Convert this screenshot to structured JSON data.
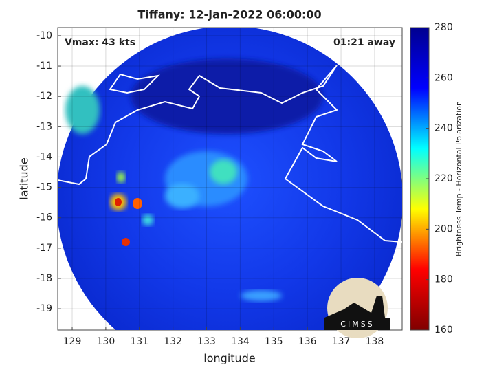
{
  "chart_data": {
    "type": "image",
    "title": "Tiffany: 12-Jan-2022 06:00:00",
    "xlabel": "longitude",
    "ylabel": "latitude",
    "annotations": [
      "Vmax: 43 kts",
      "01:21 away"
    ],
    "xlim": [
      128.57,
      138.82
    ],
    "ylim": [
      -19.7,
      -9.73
    ],
    "xticks": [
      129,
      130,
      131,
      132,
      133,
      134,
      135,
      136,
      137,
      138
    ],
    "yticks": [
      -10,
      -11,
      -12,
      -13,
      -14,
      -15,
      -16,
      -17,
      -18,
      -19
    ],
    "grid": true,
    "colorbar": {
      "label": "Brightness Temp - Horizontal Polarization",
      "clim": [
        160,
        280
      ],
      "ticks": [
        160,
        180,
        200,
        220,
        240,
        260,
        280
      ],
      "colormap": [
        "#800000",
        "#ff0000",
        "#ffff00",
        "#00ffff",
        "#0000ff",
        "#00008f"
      ]
    },
    "logo": "CIMSS"
  }
}
